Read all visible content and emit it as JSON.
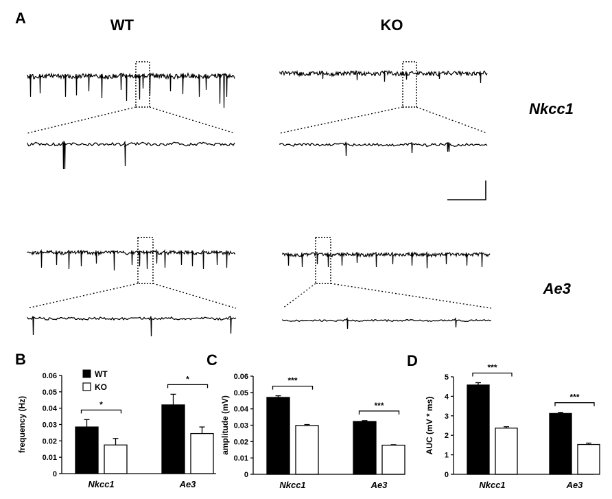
{
  "figure": {
    "panel_a_label": "A",
    "columns": [
      "WT",
      "KO"
    ],
    "rows": [
      "Nkcc1",
      "Ae3"
    ]
  },
  "legend": {
    "wt": "WT",
    "ko": "KO"
  },
  "colors": {
    "wt_fill": "#000000",
    "ko_fill": "#ffffff"
  },
  "chart_data": [
    {
      "panel": "B",
      "type": "bar",
      "ylabel": "frequency (Hz)",
      "ylim": [
        0,
        0.06
      ],
      "yticks": [
        "0",
        "0.01",
        "0.02",
        "0.03",
        "0.04",
        "0.05",
        "0.06"
      ],
      "categories": [
        "Nkcc1",
        "Ae3"
      ],
      "series": [
        {
          "name": "WT",
          "values": [
            0.0285,
            0.042
          ],
          "errors": [
            0.0045,
            0.0065
          ]
        },
        {
          "name": "KO",
          "values": [
            0.0175,
            0.0245
          ],
          "errors": [
            0.004,
            0.004
          ]
        }
      ],
      "significance": [
        "*",
        "*"
      ]
    },
    {
      "panel": "C",
      "type": "bar",
      "ylabel": "amplitude (mV)",
      "ylim": [
        0,
        0.06
      ],
      "yticks": [
        "0",
        "0.01",
        "0.02",
        "0.03",
        "0.04",
        "0.05",
        "0.06"
      ],
      "categories": [
        "Nkcc1",
        "Ae3"
      ],
      "series": [
        {
          "name": "WT",
          "values": [
            0.047,
            0.0323
          ],
          "errors": [
            0.001,
            0.0005
          ]
        },
        {
          "name": "KO",
          "values": [
            0.0298,
            0.0178
          ],
          "errors": [
            0.0006,
            0.0003
          ]
        }
      ],
      "significance": [
        "***",
        "***"
      ]
    },
    {
      "panel": "D",
      "type": "bar",
      "ylabel": "AUC (mV * ms)",
      "ylim": [
        0,
        5
      ],
      "yticks": [
        "0",
        "1",
        "2",
        "3",
        "4",
        "5"
      ],
      "categories": [
        "Nkcc1",
        "Ae3"
      ],
      "series": [
        {
          "name": "WT",
          "values": [
            4.58,
            3.12
          ],
          "errors": [
            0.12,
            0.06
          ]
        },
        {
          "name": "KO",
          "values": [
            2.37,
            1.53
          ],
          "errors": [
            0.07,
            0.07
          ]
        }
      ],
      "significance": [
        "***",
        "***"
      ]
    }
  ]
}
